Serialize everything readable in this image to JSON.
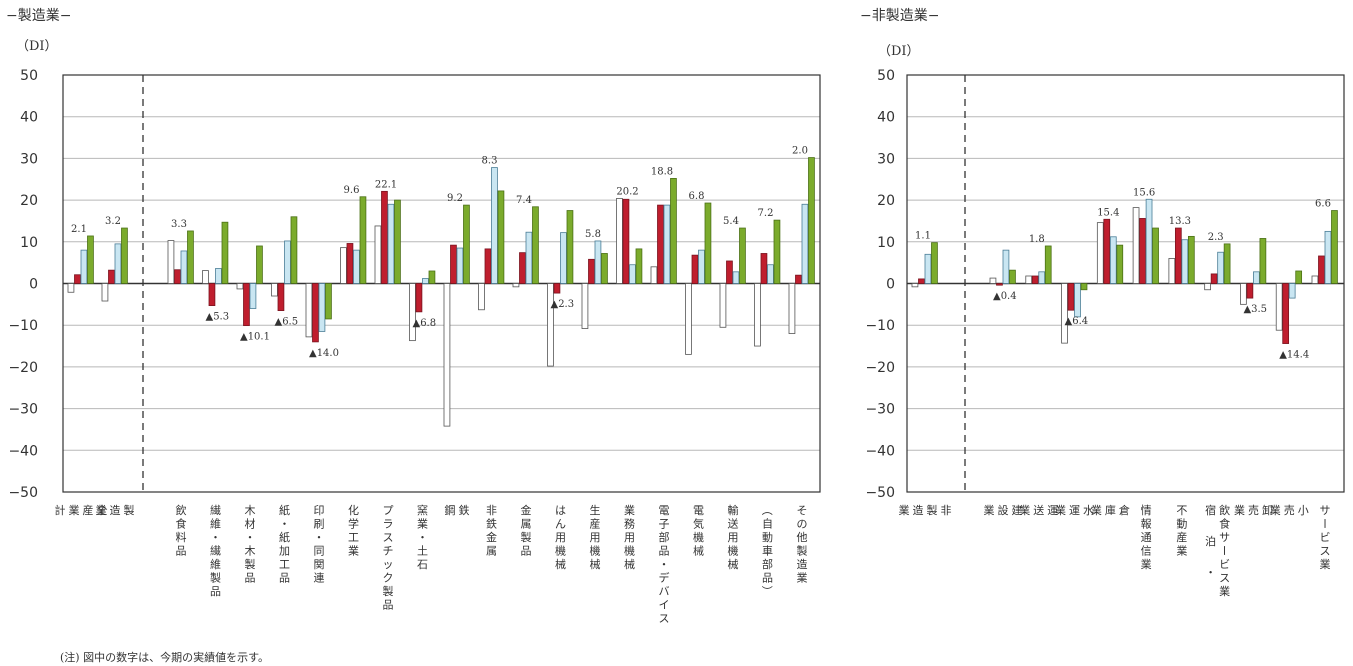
{
  "colors": {
    "series1": "#ffffff",
    "series2": "#bf1e2e",
    "series3": "#c9e6f2",
    "series4": "#7bab2c",
    "grid": "#b8b8b8",
    "axis": "#333333"
  },
  "note": "(注) 図中の数字は、今期の実績値を示す。",
  "chart_data": [
    {
      "type": "bar",
      "title": "−製造業−",
      "ylabel": "（DI）",
      "ylim": [
        -50,
        50
      ],
      "yticks": [
        50,
        40,
        30,
        20,
        10,
        0,
        -10,
        -20,
        -30,
        -40,
        -50
      ],
      "ytick_labels": [
        "50",
        "40",
        "30",
        "20",
        "10",
        "0",
        "−10",
        "−20",
        "−30",
        "−40",
        "−50"
      ],
      "grid": true,
      "separator_after": 1,
      "categories": [
        "全産業計",
        "製造業",
        "飲食料品",
        "繊維・繊維製品",
        "木材・木製品",
        "紙・紙加工品",
        "印刷・同関連",
        "化学工業",
        "プラスチック製品",
        "窯業・土石",
        "鉄鋼",
        "非鉄金属",
        "金属製品",
        "はん用機械",
        "生産用機械",
        "業務用機械",
        "電子部品・デバイス",
        "電気機械",
        "輸送用機械",
        "（自動車部品）",
        "その他製造業"
      ],
      "category_lines": [
        [
          "全",
          "産",
          "業",
          "計"
        ],
        [
          "製",
          "造",
          "業"
        ],
        [
          "飲食料品"
        ],
        [
          "繊維・繊維製品"
        ],
        [
          "木材・木製品"
        ],
        [
          "紙・紙加工品"
        ],
        [
          "印刷・同関連"
        ],
        [
          "化学工業"
        ],
        [
          "プラスチック製品"
        ],
        [
          "窯業・土石"
        ],
        [
          "鉄",
          "鋼"
        ],
        [
          "非鉄金属"
        ],
        [
          "金属製品"
        ],
        [
          "はん用機械"
        ],
        [
          "生産用機械"
        ],
        [
          "業務用機械"
        ],
        [
          "電子部品・デバイス"
        ],
        [
          "電気機械"
        ],
        [
          "輸送用機械"
        ],
        [
          "（自動車部品）"
        ],
        [
          "その他製造業"
        ]
      ],
      "series": [
        {
          "values": [
            -2.1,
            -4.2,
            10.3,
            3.1,
            -1.3,
            -3.0,
            -12.8,
            8.6,
            13.8,
            -13.7,
            -34.2,
            -6.3,
            -0.8,
            -19.8,
            -10.8,
            20.4,
            4.0,
            -17.0,
            -10.5,
            -15.0,
            -12.0
          ]
        },
        {
          "values": [
            2.1,
            3.2,
            3.3,
            -5.3,
            -10.1,
            -6.5,
            -14.0,
            9.6,
            22.1,
            -6.8,
            9.2,
            8.3,
            7.4,
            -2.3,
            5.8,
            20.2,
            18.8,
            6.8,
            5.4,
            7.2,
            2.0
          ]
        },
        {
          "values": [
            8.0,
            9.5,
            7.8,
            3.6,
            -6.0,
            10.2,
            -11.5,
            8.0,
            19.0,
            1.2,
            8.5,
            27.8,
            12.3,
            12.2,
            10.2,
            4.5,
            18.8,
            8.0,
            2.8,
            4.5,
            19.0
          ]
        },
        {
          "values": [
            11.4,
            13.3,
            12.6,
            14.7,
            9.0,
            16.0,
            -8.5,
            20.8,
            20.0,
            3.0,
            18.8,
            22.2,
            18.4,
            17.5,
            7.2,
            8.3,
            25.2,
            19.3,
            13.3,
            15.2,
            30.2
          ]
        }
      ],
      "data_labels": [
        "2.1",
        "3.2",
        "3.3",
        "▲5.3",
        "▲10.1",
        "▲6.5",
        "▲14.0",
        "9.6",
        "22.1",
        "▲6.8",
        "9.2",
        "8.3",
        "7.4",
        "▲2.3",
        "5.8",
        "20.2",
        "18.8",
        "6.8",
        "5.4",
        "7.2",
        "2.0"
      ]
    },
    {
      "type": "bar",
      "title": "−非製造業−",
      "ylabel": "（DI）",
      "ylim": [
        -50,
        50
      ],
      "yticks": [
        50,
        40,
        30,
        20,
        10,
        0,
        -10,
        -20,
        -30,
        -40,
        -50
      ],
      "ytick_labels": [
        "50",
        "40",
        "30",
        "20",
        "10",
        "0",
        "−10",
        "−20",
        "−30",
        "−40",
        "−50"
      ],
      "grid": true,
      "separator_after": 0,
      "categories": [
        "非製造業",
        "建設業",
        "運送業",
        "水運業",
        "倉庫業",
        "情報通信業",
        "不動産業",
        "飲食サービス業",
        "宿泊・卸売業",
        "小売業",
        "サービス業"
      ],
      "category_lines": [
        [
          "非",
          "製",
          "造",
          "業"
        ],
        [
          "建",
          "設",
          "業"
        ],
        [
          "運",
          "送",
          "業"
        ],
        [
          "水",
          "運",
          "業"
        ],
        [
          "倉",
          "庫",
          "業"
        ],
        [
          "情報通信業"
        ],
        [
          "不動産業"
        ],
        [
          "飲食サービス業",
          "宿泊・"
        ],
        [
          "卸",
          "売",
          "業"
        ],
        [
          "小",
          "売",
          "業"
        ],
        [
          "サービス業"
        ]
      ],
      "series": [
        {
          "values": [
            -0.8,
            1.3,
            1.8,
            -14.3,
            14.6,
            18.2,
            6.0,
            -1.5,
            -5.0,
            -11.2,
            1.8
          ]
        },
        {
          "values": [
            1.1,
            -0.4,
            1.8,
            -6.4,
            15.4,
            15.6,
            13.3,
            2.3,
            -3.5,
            -14.4,
            6.6
          ]
        },
        {
          "values": [
            7.0,
            8.0,
            2.8,
            -8.0,
            11.2,
            20.2,
            10.5,
            7.5,
            2.8,
            -3.5,
            12.5
          ]
        },
        {
          "values": [
            9.8,
            3.2,
            9.0,
            -1.5,
            9.2,
            13.3,
            11.3,
            9.5,
            10.8,
            3.0,
            17.5
          ]
        }
      ],
      "data_labels": [
        "1.1",
        "▲0.4",
        "1.8",
        "▲6.4",
        "15.4",
        "15.6",
        "13.3",
        "2.3",
        "▲3.5",
        "▲14.4",
        "6.6"
      ]
    }
  ]
}
